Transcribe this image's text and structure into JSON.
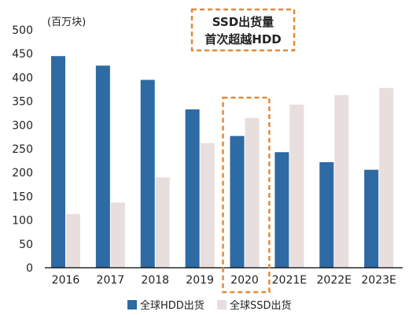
{
  "chart_data": {
    "type": "bar",
    "unit_label": "(百万块)",
    "categories": [
      "2016",
      "2017",
      "2018",
      "2019",
      "2020",
      "2021E",
      "2022E",
      "2023E"
    ],
    "series": [
      {
        "name": "全球HDD出货",
        "values": [
          445,
          425,
          395,
          333,
          277,
          243,
          222,
          206
        ],
        "color": "#2e6aa3"
      },
      {
        "name": "全球SSD出货",
        "values": [
          113,
          137,
          190,
          262,
          315,
          343,
          363,
          378
        ],
        "color": "#e8dedd"
      }
    ],
    "ylim": [
      0,
      500
    ],
    "yticks": [
      0,
      50,
      100,
      150,
      200,
      250,
      300,
      350,
      400,
      450,
      500
    ],
    "grid": false,
    "legend_position": "bottom-center",
    "highlight": {
      "category": "2020",
      "style": "dashed-box",
      "color": "#e08a3c"
    },
    "annotation": {
      "lines": [
        "SSD出货量",
        "首次超越HDD"
      ],
      "color": "#e08a3c"
    }
  }
}
